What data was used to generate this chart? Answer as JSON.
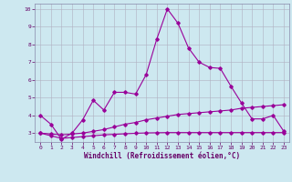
{
  "xlabel": "Windchill (Refroidissement éolien,°C)",
  "xlim": [
    -0.5,
    23.5
  ],
  "ylim": [
    2.5,
    10.3
  ],
  "xticks": [
    0,
    1,
    2,
    3,
    4,
    5,
    6,
    7,
    8,
    9,
    10,
    11,
    12,
    13,
    14,
    15,
    16,
    17,
    18,
    19,
    20,
    21,
    22,
    23
  ],
  "yticks": [
    3,
    4,
    5,
    6,
    7,
    8,
    9,
    10
  ],
  "bg_color": "#cde8f0",
  "line_color": "#990099",
  "grid_color": "#b0b0c0",
  "line1_x": [
    0,
    1,
    2,
    3,
    4,
    5,
    6,
    7,
    8,
    9,
    10,
    11,
    12,
    13,
    14,
    15,
    16,
    17,
    18,
    19,
    20,
    21,
    22,
    23
  ],
  "line1_y": [
    4.0,
    3.5,
    2.65,
    3.0,
    3.75,
    4.85,
    4.3,
    5.3,
    5.3,
    5.2,
    6.3,
    8.3,
    10.0,
    9.2,
    7.8,
    7.0,
    6.7,
    6.65,
    5.65,
    4.7,
    3.8,
    3.8,
    4.0,
    3.1
  ],
  "line2_x": [
    0,
    1,
    2,
    3,
    4,
    5,
    6,
    7,
    8,
    9,
    10,
    11,
    12,
    13,
    14,
    15,
    16,
    17,
    18,
    19,
    20,
    21,
    22,
    23
  ],
  "line2_y": [
    3.0,
    2.95,
    2.9,
    2.95,
    3.0,
    3.1,
    3.2,
    3.35,
    3.5,
    3.6,
    3.75,
    3.85,
    3.95,
    4.05,
    4.1,
    4.15,
    4.2,
    4.25,
    4.3,
    4.4,
    4.45,
    4.5,
    4.55,
    4.6
  ],
  "line3_x": [
    0,
    1,
    2,
    3,
    4,
    5,
    6,
    7,
    8,
    9,
    10,
    11,
    12,
    13,
    14,
    15,
    16,
    17,
    18,
    19,
    20,
    21,
    22,
    23
  ],
  "line3_y": [
    3.0,
    2.85,
    2.7,
    2.75,
    2.8,
    2.85,
    2.9,
    2.93,
    2.96,
    2.99,
    3.01,
    3.02,
    3.03,
    3.03,
    3.03,
    3.03,
    3.03,
    3.03,
    3.03,
    3.03,
    3.03,
    3.03,
    3.03,
    3.03
  ]
}
